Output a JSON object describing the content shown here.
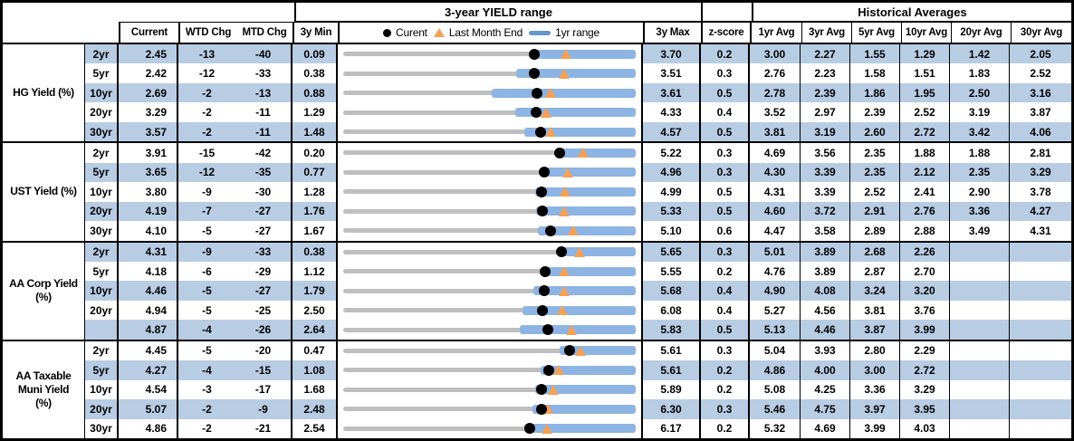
{
  "header": {
    "band_yield_range": "3-year YIELD range",
    "band_historical": "Historical Averages",
    "col_current": "Current",
    "col_wtd": "WTD Chg",
    "col_mtd": "MTD Chg",
    "col_3y_min": "3y Min",
    "col_3y_max": "3y Max",
    "col_zscore": "z-score",
    "avg_cols": [
      "1yr Avg",
      "3yr Avg",
      "5yr Avg",
      "10yr Avg",
      "20yr Avg",
      "30yr Avg"
    ],
    "legend": {
      "current": "Curent",
      "last_month_end": "Last Month End",
      "one_yr_range": "1yr range"
    }
  },
  "colors": {
    "row_shade": "#b8cce4",
    "one_yr_bar": "#8db4e2",
    "three_yr_track": "#bfbfbf",
    "last_month_marker": "#f4a155",
    "current_marker": "#000000",
    "legend_line": "#6596cc",
    "border": "#000000"
  },
  "groups": [
    {
      "label_lines": [
        "HG Yield (%)"
      ],
      "rows": [
        {
          "tenor": "2yr",
          "current": "2.45",
          "wtd": "-13",
          "mtd": "-40",
          "min": "0.09",
          "max": "3.70",
          "zscore": "0.2",
          "avgs": [
            "3.00",
            "2.27",
            "1.55",
            "1.29",
            "1.42",
            "2.05"
          ],
          "shaded": true,
          "chart": {
            "min": 0.09,
            "max": 3.7,
            "lo": 2.43,
            "hi": 3.7,
            "cur": 2.45,
            "lme": 2.85
          }
        },
        {
          "tenor": "5yr",
          "current": "2.42",
          "wtd": "-12",
          "mtd": "-33",
          "min": "0.38",
          "max": "3.51",
          "zscore": "0.3",
          "avgs": [
            "2.76",
            "2.23",
            "1.58",
            "1.51",
            "1.83",
            "2.52"
          ],
          "shaded": false,
          "chart": {
            "min": 0.38,
            "max": 3.51,
            "lo": 2.23,
            "hi": 3.51,
            "cur": 2.42,
            "lme": 2.75
          }
        },
        {
          "tenor": "10yr",
          "current": "2.69",
          "wtd": "-2",
          "mtd": "-13",
          "min": "0.88",
          "max": "3.61",
          "zscore": "0.5",
          "avgs": [
            "2.78",
            "2.39",
            "1.86",
            "1.95",
            "2.50",
            "3.16"
          ],
          "shaded": true,
          "chart": {
            "min": 0.88,
            "max": 3.61,
            "lo": 2.27,
            "hi": 3.61,
            "cur": 2.69,
            "lme": 2.82
          }
        },
        {
          "tenor": "20yr",
          "current": "3.29",
          "wtd": "-2",
          "mtd": "-11",
          "min": "1.29",
          "max": "4.33",
          "zscore": "0.4",
          "avgs": [
            "3.52",
            "2.97",
            "2.39",
            "2.52",
            "3.19",
            "3.87"
          ],
          "shaded": false,
          "chart": {
            "min": 1.29,
            "max": 4.33,
            "lo": 3.08,
            "hi": 4.33,
            "cur": 3.29,
            "lme": 3.4
          }
        },
        {
          "tenor": "30yr",
          "current": "3.57",
          "wtd": "-2",
          "mtd": "-11",
          "min": "1.48",
          "max": "4.57",
          "zscore": "0.5",
          "avgs": [
            "3.81",
            "3.19",
            "2.60",
            "2.72",
            "3.42",
            "4.06"
          ],
          "shaded": true,
          "chart": {
            "min": 1.48,
            "max": 4.57,
            "lo": 3.39,
            "hi": 4.57,
            "cur": 3.57,
            "lme": 3.68
          }
        }
      ]
    },
    {
      "label_lines": [
        "UST Yield (%)"
      ],
      "rows": [
        {
          "tenor": "2yr",
          "current": "3.91",
          "wtd": "-15",
          "mtd": "-42",
          "min": "0.20",
          "max": "5.22",
          "zscore": "0.3",
          "avgs": [
            "4.69",
            "3.56",
            "2.35",
            "1.88",
            "1.88",
            "2.81"
          ],
          "shaded": false,
          "chart": {
            "min": 0.2,
            "max": 5.22,
            "lo": 3.85,
            "hi": 5.22,
            "cur": 3.91,
            "lme": 4.33
          }
        },
        {
          "tenor": "5yr",
          "current": "3.65",
          "wtd": "-12",
          "mtd": "-35",
          "min": "0.77",
          "max": "4.96",
          "zscore": "0.3",
          "avgs": [
            "4.30",
            "3.39",
            "2.35",
            "2.12",
            "2.35",
            "3.29"
          ],
          "shaded": true,
          "chart": {
            "min": 0.77,
            "max": 4.96,
            "lo": 3.58,
            "hi": 4.96,
            "cur": 3.65,
            "lme": 4.0
          }
        },
        {
          "tenor": "10yr",
          "current": "3.80",
          "wtd": "-9",
          "mtd": "-30",
          "min": "1.28",
          "max": "4.99",
          "zscore": "0.5",
          "avgs": [
            "4.31",
            "3.39",
            "2.52",
            "2.41",
            "2.90",
            "3.78"
          ],
          "shaded": false,
          "chart": {
            "min": 1.28,
            "max": 4.99,
            "lo": 3.71,
            "hi": 4.99,
            "cur": 3.8,
            "lme": 4.1
          }
        },
        {
          "tenor": "20yr",
          "current": "4.19",
          "wtd": "-7",
          "mtd": "-27",
          "min": "1.76",
          "max": "5.33",
          "zscore": "0.5",
          "avgs": [
            "4.60",
            "3.72",
            "2.91",
            "2.76",
            "3.36",
            "4.27"
          ],
          "shaded": true,
          "chart": {
            "min": 1.76,
            "max": 5.33,
            "lo": 4.11,
            "hi": 5.33,
            "cur": 4.19,
            "lme": 4.46
          }
        },
        {
          "tenor": "30yr",
          "current": "4.10",
          "wtd": "-5",
          "mtd": "-27",
          "min": "1.67",
          "max": "5.10",
          "zscore": "0.6",
          "avgs": [
            "4.47",
            "3.58",
            "2.89",
            "2.88",
            "3.49",
            "4.31"
          ],
          "shaded": false,
          "chart": {
            "min": 1.67,
            "max": 5.1,
            "lo": 3.95,
            "hi": 5.1,
            "cur": 4.1,
            "lme": 4.37
          }
        }
      ]
    },
    {
      "label_lines": [
        "AA Corp Yield",
        "(%)"
      ],
      "rows": [
        {
          "tenor": "2yr",
          "current": "4.31",
          "wtd": "-9",
          "mtd": "-33",
          "min": "0.38",
          "max": "5.65",
          "zscore": "0.3",
          "avgs": [
            "5.01",
            "3.89",
            "2.68",
            "2.26",
            "",
            ""
          ],
          "shaded": true,
          "chart": {
            "min": 0.38,
            "max": 5.65,
            "lo": 4.23,
            "hi": 5.65,
            "cur": 4.31,
            "lme": 4.64
          }
        },
        {
          "tenor": "5yr",
          "current": "4.18",
          "wtd": "-6",
          "mtd": "-29",
          "min": "1.12",
          "max": "5.55",
          "zscore": "0.2",
          "avgs": [
            "4.76",
            "3.89",
            "2.87",
            "2.70",
            "",
            ""
          ],
          "shaded": false,
          "chart": {
            "min": 1.12,
            "max": 5.55,
            "lo": 4.11,
            "hi": 5.55,
            "cur": 4.18,
            "lme": 4.47
          }
        },
        {
          "tenor": "10yr",
          "current": "4.46",
          "wtd": "-5",
          "mtd": "-27",
          "min": "1.79",
          "max": "5.68",
          "zscore": "0.4",
          "avgs": [
            "4.90",
            "4.08",
            "3.24",
            "3.20",
            "",
            ""
          ],
          "shaded": true,
          "chart": {
            "min": 1.79,
            "max": 5.68,
            "lo": 4.32,
            "hi": 5.68,
            "cur": 4.46,
            "lme": 4.73
          }
        },
        {
          "tenor": "20yr",
          "current": "4.94",
          "wtd": "-5",
          "mtd": "-25",
          "min": "2.50",
          "max": "6.08",
          "zscore": "0.4",
          "avgs": [
            "5.27",
            "4.56",
            "3.81",
            "3.76",
            "",
            ""
          ],
          "shaded": false,
          "chart": {
            "min": 2.5,
            "max": 6.08,
            "lo": 4.7,
            "hi": 6.08,
            "cur": 4.94,
            "lme": 5.19
          }
        },
        {
          "tenor": "",
          "current": "4.87",
          "wtd": "-4",
          "mtd": "-26",
          "min": "2.64",
          "max": "5.83",
          "zscore": "0.5",
          "avgs": [
            "5.13",
            "4.46",
            "3.87",
            "3.99",
            "",
            ""
          ],
          "shaded": true,
          "chart": {
            "min": 2.64,
            "max": 5.83,
            "lo": 4.57,
            "hi": 5.83,
            "cur": 4.87,
            "lme": 5.13
          }
        }
      ]
    },
    {
      "label_lines": [
        "AA Taxable",
        "Muni Yield",
        "(%)"
      ],
      "rows": [
        {
          "tenor": "2yr",
          "current": "4.45",
          "wtd": "-5",
          "mtd": "-20",
          "min": "0.47",
          "max": "5.61",
          "zscore": "0.3",
          "avgs": [
            "5.04",
            "3.93",
            "2.80",
            "2.29",
            "",
            ""
          ],
          "shaded": false,
          "chart": {
            "min": 0.47,
            "max": 5.61,
            "lo": 4.28,
            "hi": 5.61,
            "cur": 4.45,
            "lme": 4.65
          }
        },
        {
          "tenor": "5yr",
          "current": "4.27",
          "wtd": "-4",
          "mtd": "-15",
          "min": "1.08",
          "max": "5.61",
          "zscore": "0.2",
          "avgs": [
            "4.86",
            "4.00",
            "3.00",
            "2.72",
            "",
            ""
          ],
          "shaded": true,
          "chart": {
            "min": 1.08,
            "max": 5.61,
            "lo": 4.14,
            "hi": 5.61,
            "cur": 4.27,
            "lme": 4.42
          }
        },
        {
          "tenor": "10yr",
          "current": "4.54",
          "wtd": "-3",
          "mtd": "-17",
          "min": "1.68",
          "max": "5.89",
          "zscore": "0.2",
          "avgs": [
            "5.08",
            "4.25",
            "3.36",
            "3.29",
            "",
            ""
          ],
          "shaded": false,
          "chart": {
            "min": 1.68,
            "max": 5.89,
            "lo": 4.44,
            "hi": 5.89,
            "cur": 4.54,
            "lme": 4.71
          }
        },
        {
          "tenor": "20yr",
          "current": "5.07",
          "wtd": "-2",
          "mtd": "-9",
          "min": "2.48",
          "max": "6.30",
          "zscore": "0.3",
          "avgs": [
            "5.46",
            "4.75",
            "3.97",
            "3.95",
            "",
            ""
          ],
          "shaded": true,
          "chart": {
            "min": 2.48,
            "max": 6.3,
            "lo": 4.95,
            "hi": 6.3,
            "cur": 5.07,
            "lme": 5.16
          }
        },
        {
          "tenor": "30yr",
          "current": "4.86",
          "wtd": "-2",
          "mtd": "-21",
          "min": "2.54",
          "max": "6.17",
          "zscore": "0.2",
          "avgs": [
            "5.32",
            "4.69",
            "3.99",
            "4.03",
            "",
            ""
          ],
          "shaded": false,
          "chart": {
            "min": 2.54,
            "max": 6.17,
            "lo": 4.79,
            "hi": 6.17,
            "cur": 4.86,
            "lme": 5.07
          }
        }
      ]
    }
  ],
  "chart_data": {
    "type": "table",
    "title": "3-year YIELD range bullet charts per row",
    "legend_position": "top, inside chart column header",
    "legend": [
      "Curent (black dot)",
      "Last Month End (orange triangle)",
      "1yr range (blue bar)"
    ],
    "x_axis_per_row": "scaled from 3y Min to 3y Max of that row",
    "series_note": "cur = current yield marker, lme = last month end marker (cur - MTD chg/100), lo/hi = 1yr range bar extent (hi equals 3y Max in all rows); full numeric rows live in groups[].rows[].chart"
  }
}
